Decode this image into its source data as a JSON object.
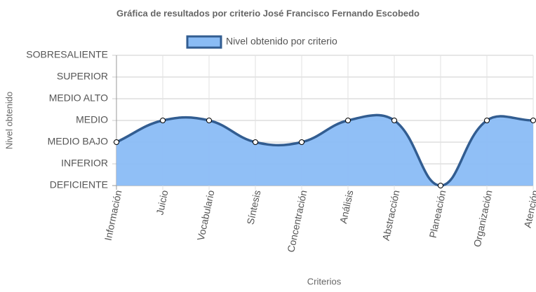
{
  "chart_data": {
    "type": "line",
    "title": "Gráfica de resultados por criterio José Francisco Fernando Escobedo",
    "x_label": "Criterios",
    "y_label": "Nivel obtenido",
    "categories": [
      "Información",
      "Juicio",
      "Vocabulario",
      "Síntesis",
      "Concentración",
      "Análisis",
      "Abstracción",
      "Planeación",
      "Organización",
      "Atención"
    ],
    "series": [
      {
        "name": "Nivel obtenido por criterio",
        "color": "#325d91",
        "fill": "#8abcf5",
        "values": [
          2,
          3,
          3,
          2,
          2,
          3,
          3,
          0,
          3,
          3
        ]
      }
    ],
    "ylim": [
      0,
      6
    ],
    "yticks": [
      {
        "value": 0,
        "label": "DEFICIENTE"
      },
      {
        "value": 1,
        "label": "INFERIOR"
      },
      {
        "value": 2,
        "label": "MEDIO BAJO"
      },
      {
        "value": 3,
        "label": "MEDIO"
      },
      {
        "value": 4,
        "label": "MEDIO ALTO"
      },
      {
        "value": 5,
        "label": "SUPERIOR"
      },
      {
        "value": 6,
        "label": "SOBRESALIENTE"
      }
    ],
    "grid": true,
    "legend": "top"
  }
}
